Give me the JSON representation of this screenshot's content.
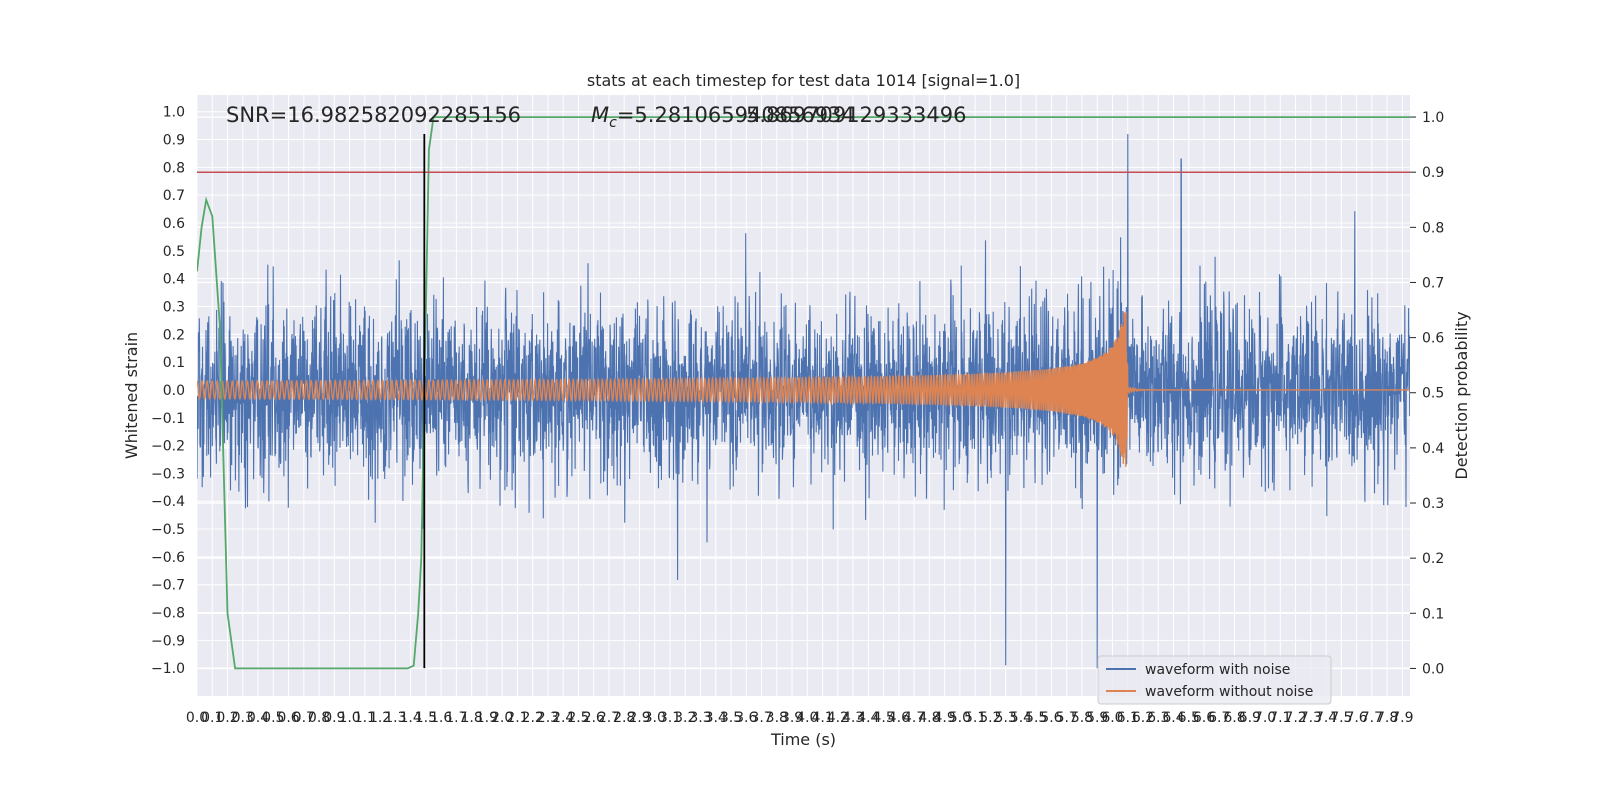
{
  "chart_data": {
    "type": "line",
    "title": "stats at each timestep for test data 1014 [signal=1.0]",
    "xlabel": "Time (s)",
    "ylabel": "Whitened strain",
    "y2label": "Detection probability",
    "xlim": [
      0.0,
      7.95
    ],
    "ylim": [
      -1.1,
      1.06
    ],
    "y2lim": [
      -0.05,
      1.04
    ],
    "x_ticks": [
      0.0,
      0.1,
      0.2,
      0.3,
      0.4,
      0.5,
      0.6,
      0.7,
      0.8,
      0.9,
      1.0,
      1.1,
      1.2,
      1.3,
      1.4,
      1.5,
      1.6,
      1.7,
      1.8,
      1.9,
      2.0,
      2.1,
      2.2,
      2.3,
      2.4,
      2.5,
      2.6,
      2.7,
      2.8,
      2.9,
      3.0,
      3.1,
      3.2,
      3.3,
      3.4,
      3.5,
      3.6,
      3.7,
      3.8,
      3.9,
      4.0,
      4.1,
      4.2,
      4.3,
      4.4,
      4.5,
      4.6,
      4.7,
      4.8,
      4.9,
      5.0,
      5.1,
      5.2,
      5.3,
      5.4,
      5.5,
      5.6,
      5.7,
      5.8,
      5.9,
      6.0,
      6.1,
      6.2,
      6.3,
      6.4,
      6.5,
      6.6,
      6.7,
      6.8,
      6.9,
      7.0,
      7.1,
      7.2,
      7.3,
      7.4,
      7.5,
      7.6,
      7.7,
      7.8,
      7.9
    ],
    "y_ticks": [
      -1.0,
      -0.9,
      -0.8,
      -0.7,
      -0.6,
      -0.5,
      -0.4,
      -0.3,
      -0.2,
      -0.1,
      0.0,
      0.1,
      0.2,
      0.3,
      0.4,
      0.5,
      0.6,
      0.7,
      0.8,
      0.9,
      1.0
    ],
    "y_tick_labels": [
      "−1.0",
      "−0.9",
      "−0.8",
      "−0.7",
      "−0.6",
      "−0.5",
      "−0.4",
      "−0.3",
      "−0.2",
      "−0.1",
      "0.0",
      "0.1",
      "0.2",
      "0.3",
      "0.4",
      "0.5",
      "0.6",
      "0.7",
      "0.8",
      "0.9",
      "1.0"
    ],
    "y2_ticks": [
      0.0,
      0.1,
      0.2,
      0.3,
      0.4,
      0.5,
      0.6,
      0.7,
      0.8,
      0.9,
      1.0
    ],
    "y2_tick_labels": [
      "0.0",
      "0.1",
      "0.2",
      "0.3",
      "0.4",
      "0.5",
      "0.6",
      "0.7",
      "0.8",
      "0.9",
      "1.0"
    ],
    "annotations": {
      "snr": "SNR=16.982582092285156",
      "mc_prefix": "M",
      "mc_sub": "c",
      "mc_value": "=5.281065940856934",
      "overlap_value": "5.869709129333496"
    },
    "series": [
      {
        "name": "waveform with noise",
        "color": "#4c72b0",
        "kind": "noise",
        "std": 0.15,
        "x_range": [
          0.0,
          7.95
        ],
        "peaks": [
          {
            "x": 6.1,
            "y": 0.92
          },
          {
            "x": 6.45,
            "y": 0.83
          },
          {
            "x": 5.3,
            "y": -0.99
          },
          {
            "x": 5.9,
            "y": -1.0
          }
        ]
      },
      {
        "name": "waveform without noise",
        "color": "#dd8452",
        "kind": "chirp",
        "merger_time": 6.1,
        "amplitude_start": 0.03,
        "amplitude_peak": 0.29
      },
      {
        "color": "#55a868",
        "kind": "detection_probability",
        "x": [
          0.0,
          0.03,
          0.06,
          0.1,
          0.15,
          0.2,
          0.25,
          0.3,
          0.5,
          0.8,
          1.0,
          1.2,
          1.3,
          1.35,
          1.38,
          1.42,
          1.45,
          1.47,
          1.49,
          1.52,
          1.55,
          1.6,
          1.7,
          2.0,
          3.0,
          4.0,
          5.0,
          6.0,
          7.0,
          7.95
        ],
        "y": [
          0.72,
          0.8,
          0.85,
          0.82,
          0.62,
          0.1,
          0.0,
          0.0,
          0.0,
          0.0,
          0.0,
          0.0,
          0.0,
          0.0,
          0.0,
          0.005,
          0.1,
          0.2,
          0.5,
          0.94,
          1.0,
          1.0,
          1.0,
          1.0,
          1.0,
          1.0,
          1.0,
          1.0,
          1.0,
          1.0
        ]
      }
    ],
    "hlines": [
      {
        "axis": "right",
        "y": 0.9,
        "color": "#c44e52"
      }
    ],
    "vlines": [
      {
        "x": 1.49,
        "y_range": [
          -1.0,
          0.92
        ],
        "color": "#000000"
      }
    ],
    "legend": {
      "placement": "lower-right",
      "entries": [
        "waveform with noise",
        "waveform without noise"
      ]
    },
    "grid": true
  }
}
